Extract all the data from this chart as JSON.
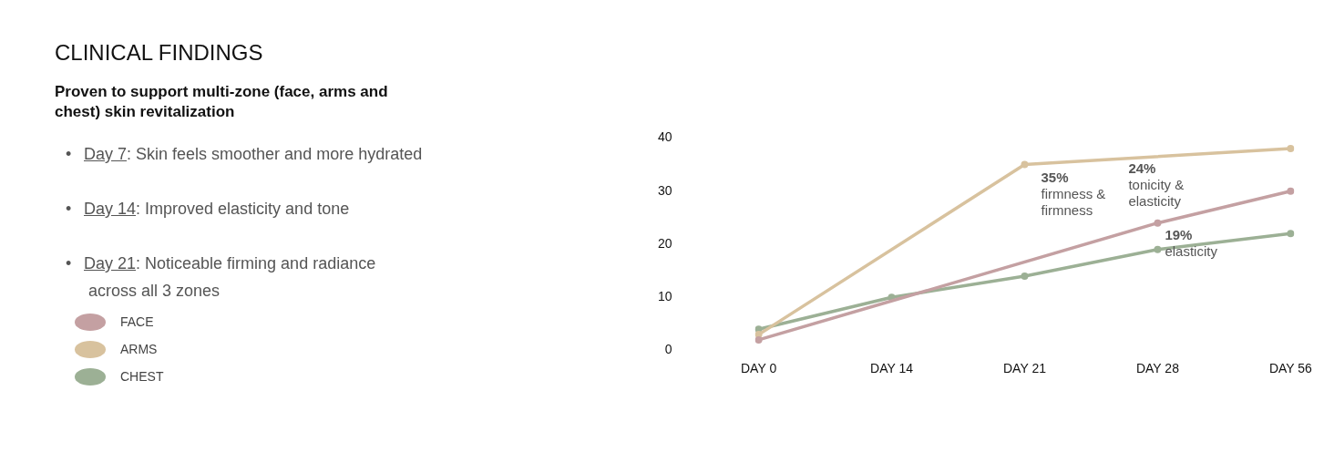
{
  "chart_data": {
    "type": "line",
    "title": "CLINICAL FINDINGS",
    "subtitle": "Proven to support multi-zone (face, arms and chest) skin revitalization",
    "categories": [
      "DAY 0",
      "DAY 14",
      "DAY 21",
      "DAY 28",
      "DAY 56"
    ],
    "series": [
      {
        "name": "FACE",
        "color": "#c4a0a2",
        "values": [
          2,
          null,
          null,
          24,
          30
        ]
      },
      {
        "name": "ARMS",
        "color": "#d8c29e",
        "values": [
          3,
          null,
          35,
          null,
          38
        ]
      },
      {
        "name": "CHEST",
        "color": "#9cb095",
        "values": [
          4,
          10,
          14,
          19,
          22
        ]
      }
    ],
    "ylim": [
      0,
      40
    ],
    "yticks": [
      0,
      10,
      20,
      30,
      40
    ],
    "grid": false,
    "legend": "left",
    "marker": "circle",
    "line_style": "solid",
    "annotations": [
      "• Day 7: Skin feels smoother and more hydrated",
      "• Day 14: Improved elasticity and tone",
      "• Day 21: Noticeable firming and radiance\n across all 3 zones",
      {
        "text": "35%\nfirmness &\nfirmness",
        "x": "DAY 21",
        "y": 35
      },
      {
        "text": "24%\ntonicity &\nelasticity",
        "x": "DAY 28",
        "y": 24
      },
      {
        "text": "19%\nelasticity",
        "x": "DAY 28",
        "y": 19
      }
    ]
  }
}
